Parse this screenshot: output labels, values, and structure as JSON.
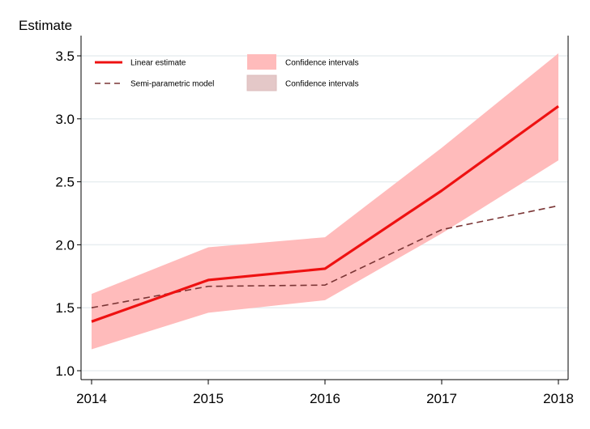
{
  "chart_data": {
    "type": "line",
    "ylabel": "Estimate",
    "xlabel": "",
    "x": [
      "2014",
      "2015",
      "2016",
      "2017",
      "2018"
    ],
    "ylim": [
      0.95,
      3.6
    ],
    "yticks": [
      1.0,
      1.5,
      2.0,
      2.5,
      3.0,
      3.5
    ],
    "ytick_labels": [
      "1.0",
      "1.5",
      "2.0",
      "2.5",
      "3.0",
      "3.5"
    ],
    "grid": true,
    "series": [
      {
        "name": "Linear estimate",
        "values": [
          1.39,
          1.72,
          1.81,
          2.43,
          3.1
        ],
        "ci_lower": [
          1.17,
          1.46,
          1.56,
          2.09,
          2.67
        ],
        "ci_upper": [
          1.61,
          1.98,
          2.06,
          2.77,
          3.52
        ],
        "ci_label": "Confidence intervals",
        "color": "#ee1111",
        "ci_color": "#ffbbbb",
        "style": "solid"
      },
      {
        "name": "Semi-parametric model",
        "values": [
          1.5,
          1.67,
          1.68,
          2.12,
          2.31
        ],
        "ci_label": "Confidence intervals",
        "color": "#7a3535",
        "ci_color": "#e4c8c8",
        "style": "dashed"
      }
    ],
    "legend_position": "top-left"
  }
}
